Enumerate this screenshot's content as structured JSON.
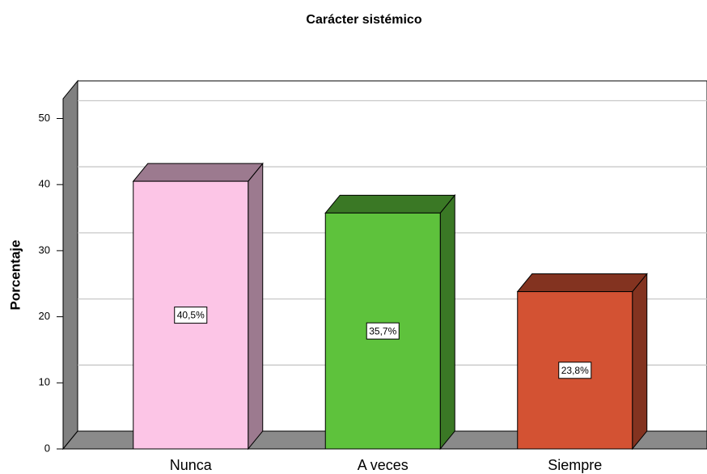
{
  "chart_data": {
    "type": "bar3d",
    "title": "Carácter sistémico",
    "y_label": "Porcentaje",
    "categories": [
      "Nunca",
      "A veces",
      "Siempre"
    ],
    "values": [
      40.5,
      35.7,
      23.8
    ],
    "value_labels": [
      "40,5%",
      "35,7%",
      "23,8%"
    ],
    "colors": [
      "#fcc5e6",
      "#5ec23c",
      "#d35233"
    ],
    "ylim": [
      0,
      53
    ],
    "yticks": [
      0,
      10,
      20,
      30,
      40,
      50
    ],
    "grid": true
  }
}
